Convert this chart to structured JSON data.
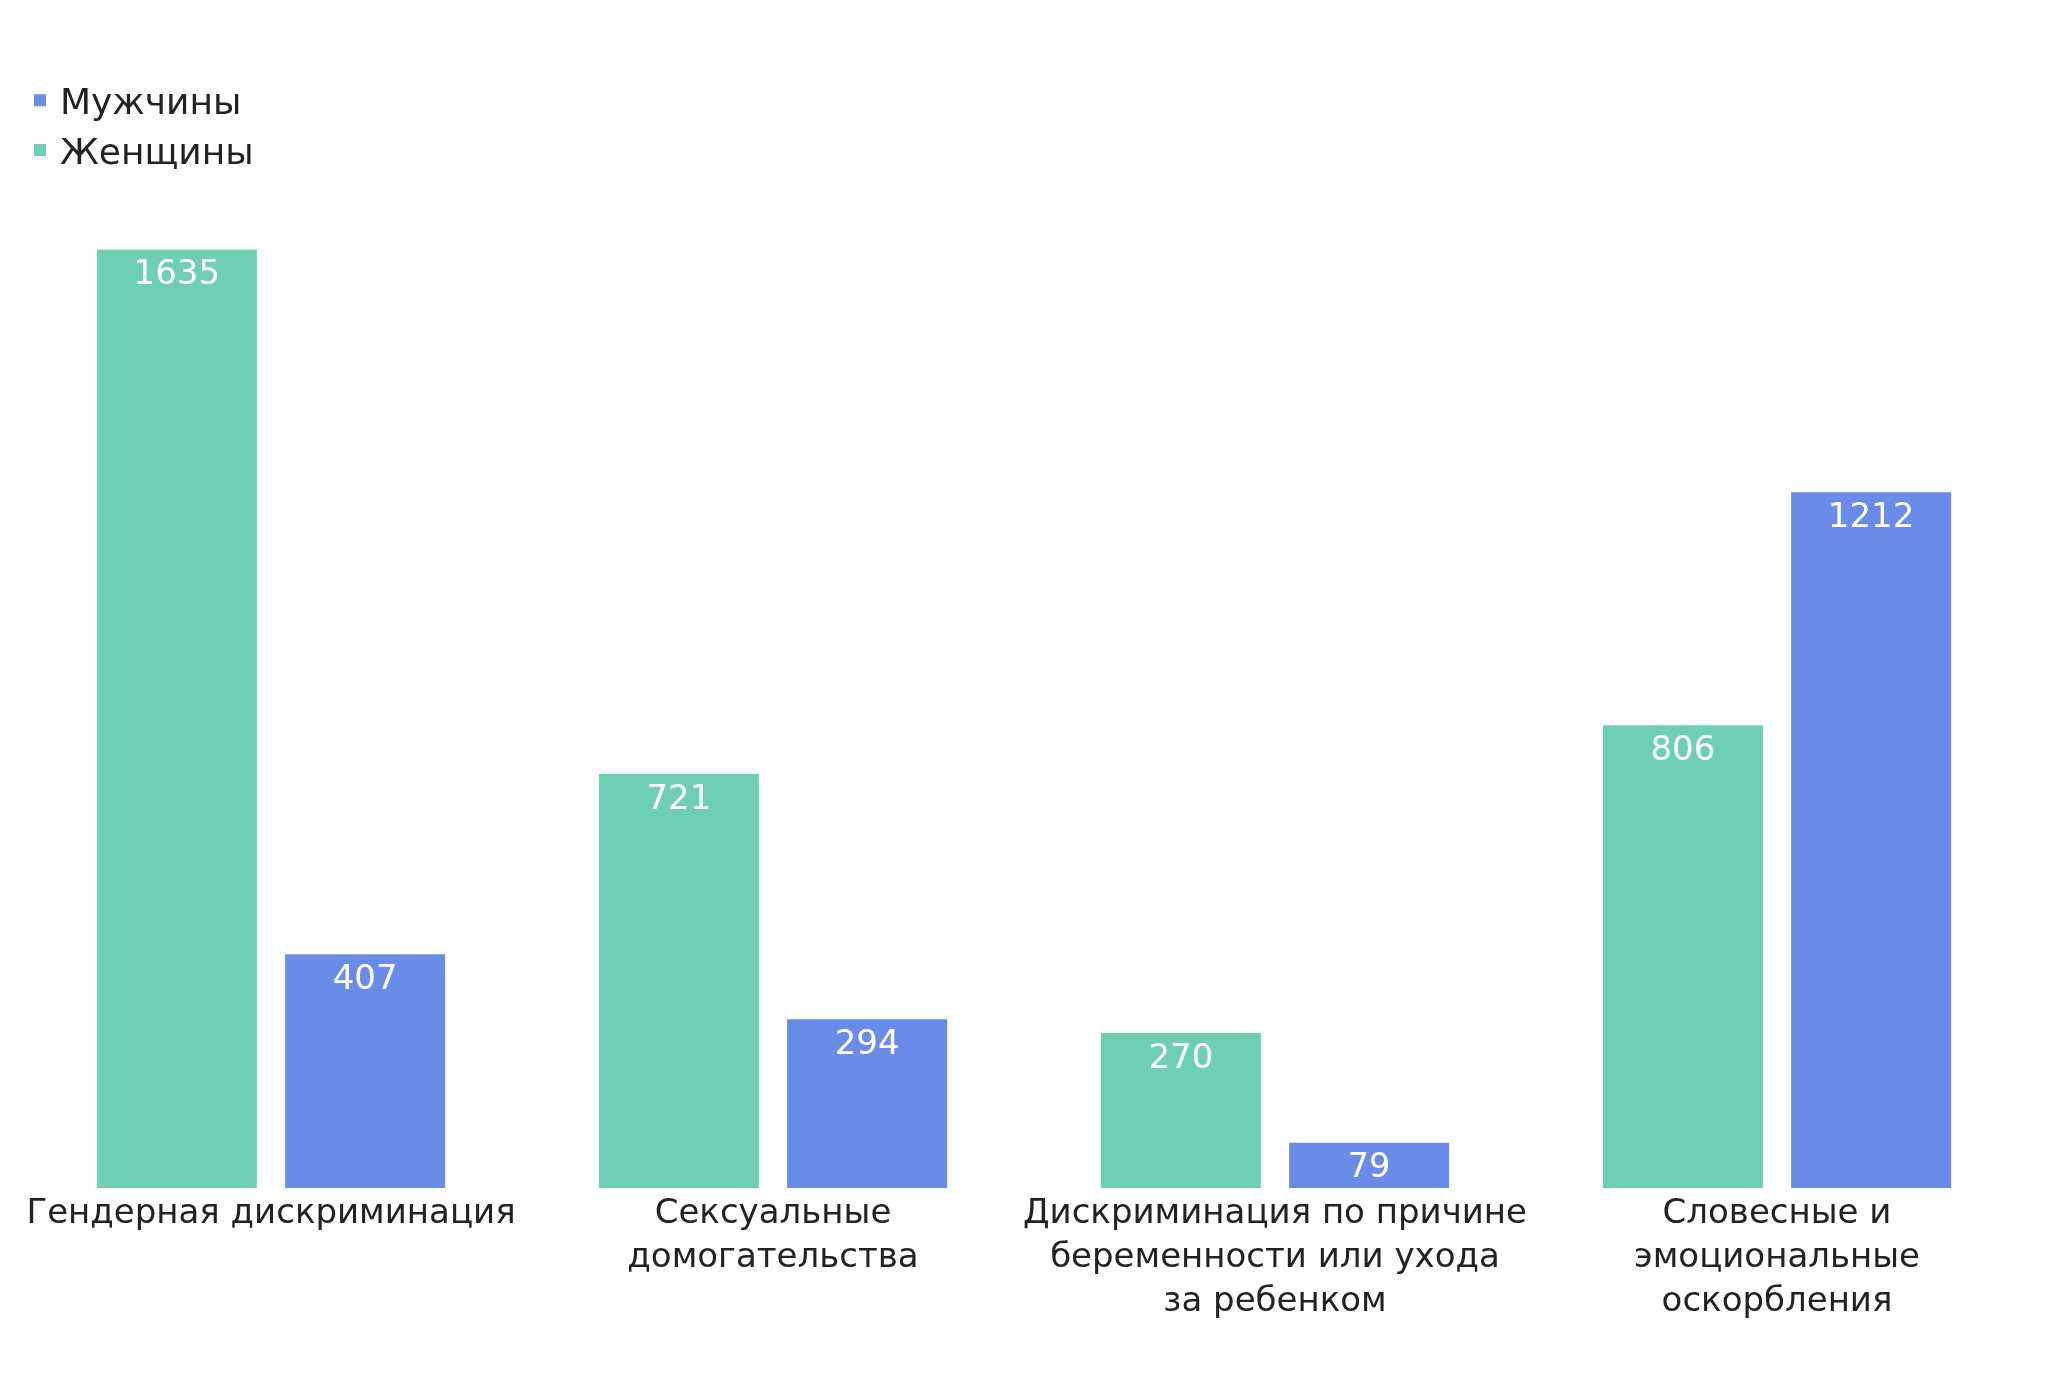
{
  "chart_data": {
    "type": "bar",
    "categories": [
      "Гендерная дискриминация",
      "Сексуальные домогательства",
      "Дискриминация по причине беременности или ухода за ребенком",
      "Словесные и эмоциональные оскорбления"
    ],
    "series": [
      {
        "name": "Женщины",
        "color": "#6ecfb2",
        "values": [
          1635,
          721,
          270,
          806
        ]
      },
      {
        "name": "Мужчины",
        "color": "#6a8ce8",
        "values": [
          407,
          294,
          79,
          1212
        ]
      }
    ],
    "data_labels": true,
    "legend": "top left",
    "tick_labels": "x"
  }
}
